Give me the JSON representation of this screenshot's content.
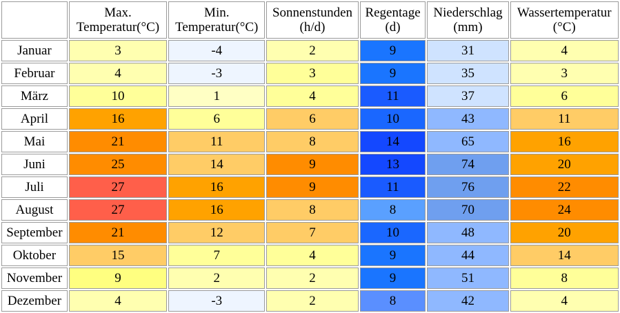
{
  "headers": [
    {
      "line1": "Max.",
      "line2": "Temperatur(°C)"
    },
    {
      "line1": "Min.",
      "line2": "Temperatur(°C)"
    },
    {
      "line1": "Sonnenstunden",
      "line2": "(h/d)"
    },
    {
      "line1": "Regentage",
      "line2": "(d)"
    },
    {
      "line1": "Niederschlag",
      "line2": "(mm)"
    },
    {
      "line1": "Wassertemperatur",
      "line2": "(°C)"
    }
  ],
  "rows": [
    {
      "month": "Januar",
      "values": [
        3,
        -4,
        2,
        9,
        31,
        4
      ],
      "colors": [
        "#ffffb0",
        "#eef5ff",
        "#ffffb0",
        "#1a75ff",
        "#cfe3ff",
        "#ffffb0"
      ]
    },
    {
      "month": "Februar",
      "values": [
        4,
        -3,
        3,
        9,
        35,
        3
      ],
      "colors": [
        "#ffffb0",
        "#eef5ff",
        "#ffff99",
        "#1a75ff",
        "#cfe3ff",
        "#ffffb0"
      ]
    },
    {
      "month": "März",
      "values": [
        10,
        1,
        4,
        11,
        37,
        6
      ],
      "colors": [
        "#ffff99",
        "#ffffc4",
        "#ffff99",
        "#1a5bff",
        "#cfe3ff",
        "#ffff99"
      ]
    },
    {
      "month": "April",
      "values": [
        16,
        6,
        6,
        10,
        43,
        11
      ],
      "colors": [
        "#ffa200",
        "#ffff99",
        "#ffcc66",
        "#1a67ff",
        "#8fb8ff",
        "#ffcc66"
      ]
    },
    {
      "month": "Mai",
      "values": [
        21,
        11,
        8,
        14,
        65,
        16
      ],
      "colors": [
        "#ff8c00",
        "#ffcc66",
        "#ffcc66",
        "#1448ff",
        "#8fb8ff",
        "#ffa200"
      ]
    },
    {
      "month": "Juni",
      "values": [
        25,
        14,
        9,
        13,
        74,
        20
      ],
      "colors": [
        "#ff8c00",
        "#ffcc66",
        "#ff8c00",
        "#1448ff",
        "#6f9fef",
        "#ffa200"
      ]
    },
    {
      "month": "Juli",
      "values": [
        27,
        16,
        9,
        11,
        76,
        22
      ],
      "colors": [
        "#ff5f4a",
        "#ffa200",
        "#ff8c00",
        "#1a5bff",
        "#6f9fef",
        "#ff8c00"
      ]
    },
    {
      "month": "August",
      "values": [
        27,
        16,
        8,
        8,
        70,
        24
      ],
      "colors": [
        "#ff5f4a",
        "#ffa200",
        "#ffcc66",
        "#5aa0ff",
        "#6f9fef",
        "#ff8c00"
      ]
    },
    {
      "month": "September",
      "values": [
        21,
        12,
        7,
        10,
        48,
        20
      ],
      "colors": [
        "#ff8c00",
        "#ffcc66",
        "#ffcc66",
        "#1a67ff",
        "#8fb8ff",
        "#ffa200"
      ]
    },
    {
      "month": "Oktober",
      "values": [
        15,
        7,
        4,
        9,
        44,
        14
      ],
      "colors": [
        "#ffcc66",
        "#ffff99",
        "#ffff99",
        "#1a75ff",
        "#8fb8ff",
        "#ffcc66"
      ]
    },
    {
      "month": "November",
      "values": [
        9,
        2,
        2,
        9,
        51,
        8
      ],
      "colors": [
        "#ffff80",
        "#ffffb0",
        "#ffffb0",
        "#1a75ff",
        "#8fb8ff",
        "#ffff99"
      ]
    },
    {
      "month": "Dezember",
      "values": [
        4,
        -3,
        2,
        8,
        42,
        4
      ],
      "colors": [
        "#ffffb0",
        "#eef5ff",
        "#ffffb0",
        "#5a8fff",
        "#8fb8ff",
        "#ffffb0"
      ]
    }
  ]
}
